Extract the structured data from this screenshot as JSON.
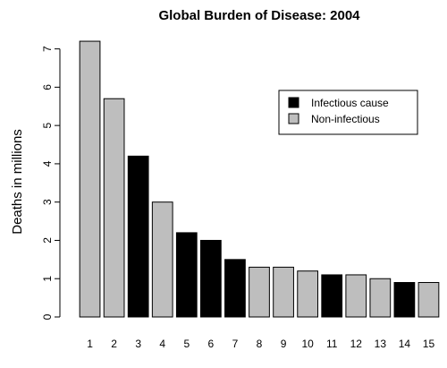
{
  "chart_data": {
    "type": "bar",
    "title": "Global Burden of Disease: 2004",
    "xlabel": "",
    "ylabel": "Deaths in millions",
    "ylim": [
      0,
      7.4
    ],
    "yticks": [
      0,
      1,
      2,
      3,
      4,
      5,
      6,
      7
    ],
    "categories": [
      "1",
      "2",
      "3",
      "4",
      "5",
      "6",
      "7",
      "8",
      "9",
      "10",
      "11",
      "12",
      "13",
      "14",
      "15"
    ],
    "values": [
      7.2,
      5.7,
      4.2,
      3.0,
      2.2,
      2.0,
      1.5,
      1.3,
      1.3,
      1.2,
      1.1,
      1.1,
      1.0,
      0.9,
      0.9
    ],
    "infectious": [
      false,
      false,
      true,
      false,
      true,
      true,
      true,
      false,
      false,
      false,
      true,
      false,
      false,
      true,
      false
    ],
    "grid": false,
    "legend": {
      "placement": "top-right",
      "entries": [
        {
          "label": "Infectious cause",
          "color": "#000000"
        },
        {
          "label": "Non-infectious",
          "color": "#bebebe"
        }
      ]
    },
    "colors": {
      "infectious": "#000000",
      "non_infectious": "#bebebe",
      "border": "#000000"
    }
  }
}
